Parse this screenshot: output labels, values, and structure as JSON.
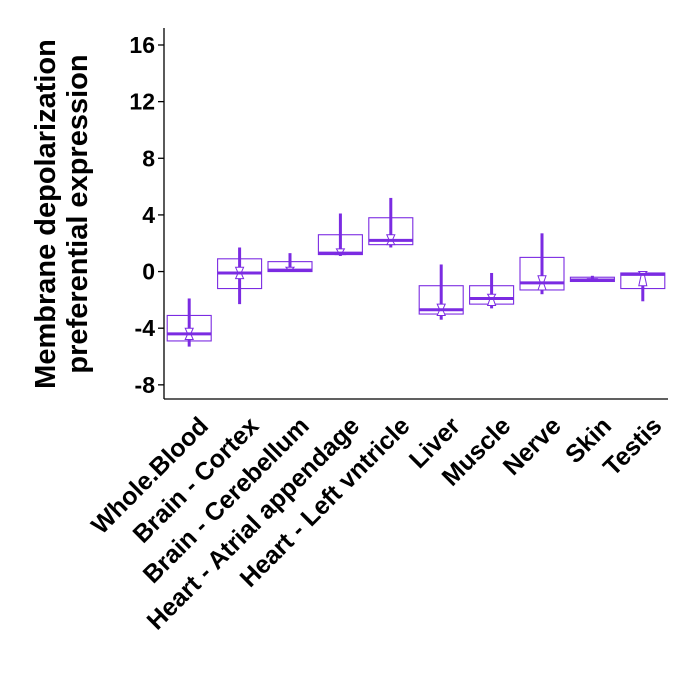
{
  "chart_data": {
    "type": "boxplot",
    "title": "",
    "ylabel_lines": [
      "Membrane depolarization",
      "preferential expression"
    ],
    "xlabel": "",
    "ylim": [
      -9,
      17.2
    ],
    "yticks": [
      -8,
      -4,
      0,
      4,
      8,
      12,
      16
    ],
    "ytick_labels": [
      "-8",
      "-4",
      "0",
      "4",
      "8",
      "12",
      "16"
    ],
    "color": "#7B2BE2",
    "grid": false,
    "categories": [
      "Whole.Blood",
      "Brain - Cortex",
      "Brain - Cerebellum",
      "Heart - Atrial appendage",
      "Heart - Left vntricle",
      "Liver",
      "Muscle",
      "Nerve",
      "Skin",
      "Testis"
    ],
    "boxes": [
      {
        "whisker_low": -5.3,
        "q1": -4.9,
        "median": -4.4,
        "q3": -3.1,
        "whisker_high": -1.9,
        "notch_low": -4.8,
        "notch_high": -4.0
      },
      {
        "whisker_low": -2.3,
        "q1": -1.2,
        "median": -0.1,
        "q3": 0.9,
        "whisker_high": 1.7,
        "notch_low": -0.5,
        "notch_high": 0.3
      },
      {
        "whisker_low": 0.0,
        "q1": 0.0,
        "median": 0.1,
        "q3": 0.7,
        "whisker_high": 1.3,
        "notch_low": 0.0,
        "notch_high": 0.3
      },
      {
        "whisker_low": 1.1,
        "q1": 1.2,
        "median": 1.3,
        "q3": 2.6,
        "whisker_high": 4.1,
        "notch_low": 1.2,
        "notch_high": 1.6
      },
      {
        "whisker_low": 1.7,
        "q1": 1.9,
        "median": 2.2,
        "q3": 3.8,
        "whisker_high": 5.2,
        "notch_low": 1.9,
        "notch_high": 2.6
      },
      {
        "whisker_low": -3.4,
        "q1": -3.0,
        "median": -2.7,
        "q3": -1.0,
        "whisker_high": 0.5,
        "notch_low": -3.1,
        "notch_high": -2.3
      },
      {
        "whisker_low": -2.6,
        "q1": -2.3,
        "median": -1.9,
        "q3": -1.0,
        "whisker_high": -0.1,
        "notch_low": -2.4,
        "notch_high": -1.6
      },
      {
        "whisker_low": -1.6,
        "q1": -1.3,
        "median": -0.8,
        "q3": 1.0,
        "whisker_high": 2.7,
        "notch_low": -1.3,
        "notch_high": -0.3
      },
      {
        "whisker_low": -0.7,
        "q1": -0.7,
        "median": -0.6,
        "q3": -0.4,
        "whisker_high": -0.3,
        "notch_low": -0.7,
        "notch_high": -0.5
      },
      {
        "whisker_low": -2.1,
        "q1": -1.2,
        "median": -0.2,
        "q3": -0.1,
        "whisker_high": 0.0,
        "notch_low": -1.0,
        "notch_high": 0.0
      }
    ]
  }
}
